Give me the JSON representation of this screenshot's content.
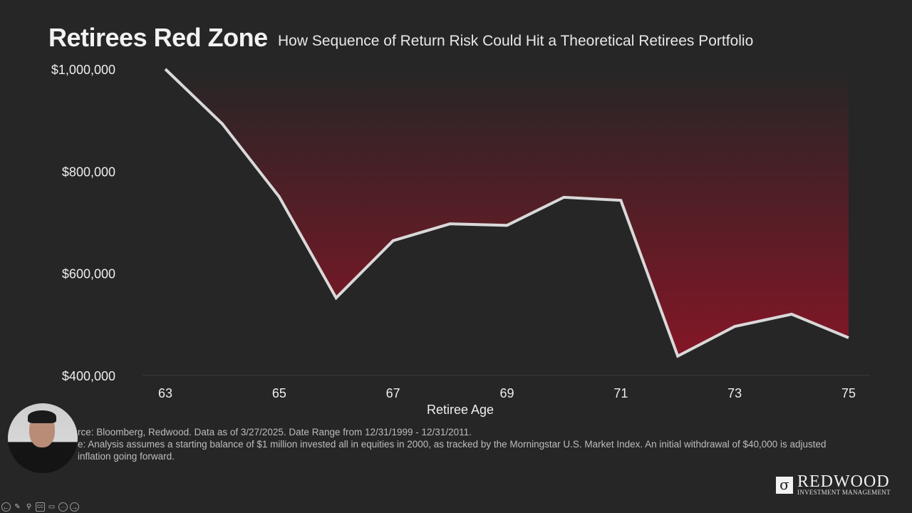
{
  "chart_data": {
    "type": "area",
    "title": "Retirees Red Zone",
    "subtitle": "How Sequence of Return Risk Could Hit a Theoretical Retirees Portfolio",
    "xlabel": "Retiree Age",
    "ylabel": "",
    "x": [
      63,
      64,
      65,
      66,
      67,
      68,
      69,
      70,
      71,
      72,
      73,
      74,
      75
    ],
    "values": [
      1000000,
      893000,
      750000,
      552000,
      664000,
      697000,
      694000,
      749000,
      743000,
      438000,
      496000,
      520000,
      474000
    ],
    "xlim": [
      63,
      75
    ],
    "ylim": [
      400000,
      1000000
    ],
    "x_ticks": [
      63,
      65,
      67,
      69,
      71,
      73,
      75
    ],
    "x_tick_labels": [
      "63",
      "65",
      "67",
      "69",
      "71",
      "73",
      "75"
    ],
    "y_ticks": [
      400000,
      600000,
      800000,
      1000000
    ],
    "y_tick_labels": [
      "$400,000",
      "$600,000",
      "$800,000",
      "$1,000,000"
    ],
    "grid": false,
    "line_color": "#d9d9d9",
    "fill_color": "#8a1526"
  },
  "footnotes": [
    "rce: Bloomberg, Redwood. Data as of 3/27/2025. Date Range from 12/31/1999 - 12/31/2011.",
    "e: Analysis assumes a starting balance of $1 million invested all in equities in 2000, as tracked by the Morningstar U.S. Market Index. An initial withdrawal of $40,000 is adjusted",
    "inflation going forward."
  ],
  "logo": {
    "name": "REDWOOD",
    "sub": "INVESTMENT MANAGEMENT"
  },
  "toolbar": {
    "prev": "←",
    "pen": "✎",
    "zoom": "⚲",
    "cc": "CC",
    "video": "▭",
    "more": "···",
    "next": "→"
  }
}
